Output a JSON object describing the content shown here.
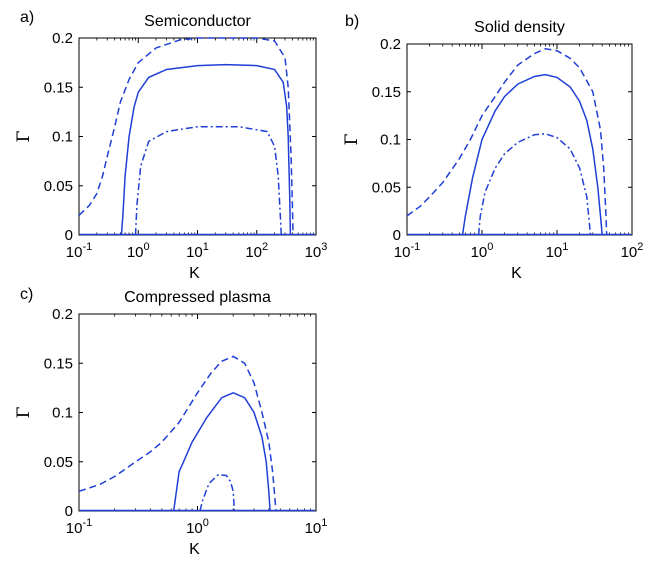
{
  "chart_data": [
    {
      "type": "line",
      "panel_label": "a)",
      "title": "Semiconductor",
      "xlabel": "K",
      "ylabel": "Γ",
      "xscale": "log",
      "xlim": [
        0.1,
        1000
      ],
      "ylim": [
        0,
        0.2
      ],
      "grid": false,
      "x_ticks": [
        0.1,
        1,
        10,
        100,
        1000
      ],
      "x_tick_labels": [
        {
          "base": "10",
          "exp": "-1"
        },
        {
          "base": "10",
          "exp": "0"
        },
        {
          "base": "10",
          "exp": "1"
        },
        {
          "base": "10",
          "exp": "2"
        },
        {
          "base": "10",
          "exp": "3"
        }
      ],
      "y_ticks": [
        0,
        0.05,
        0.1,
        0.15,
        0.2
      ],
      "y_tick_labels": [
        "0",
        "0.05",
        "0.1",
        "0.15",
        "0.2"
      ],
      "series": [
        {
          "style": "dashed",
          "color": "#1f3fd6",
          "points": [
            [
              0.1,
              0.02
            ],
            [
              0.15,
              0.03
            ],
            [
              0.2,
              0.042
            ],
            [
              0.25,
              0.06
            ],
            [
              0.3,
              0.08
            ],
            [
              0.4,
              0.11
            ],
            [
              0.5,
              0.135
            ],
            [
              0.7,
              0.158
            ],
            [
              1,
              0.175
            ],
            [
              2,
              0.19
            ],
            [
              5,
              0.198
            ],
            [
              10,
              0.2
            ],
            [
              30,
              0.2
            ],
            [
              100,
              0.2
            ],
            [
              200,
              0.197
            ],
            [
              300,
              0.18
            ],
            [
              340,
              0.15
            ],
            [
              380,
              0.08
            ],
            [
              400,
              0.03
            ],
            [
              410,
              0.0
            ]
          ]
        },
        {
          "style": "solid",
          "color": "#1f3fd6",
          "points": [
            [
              0.52,
              0.0
            ],
            [
              0.55,
              0.02
            ],
            [
              0.6,
              0.06
            ],
            [
              0.7,
              0.1
            ],
            [
              0.85,
              0.13
            ],
            [
              1,
              0.145
            ],
            [
              1.5,
              0.16
            ],
            [
              3,
              0.168
            ],
            [
              10,
              0.172
            ],
            [
              30,
              0.173
            ],
            [
              100,
              0.172
            ],
            [
              200,
              0.168
            ],
            [
              280,
              0.155
            ],
            [
              320,
              0.13
            ],
            [
              340,
              0.1
            ],
            [
              360,
              0.04
            ],
            [
              370,
              0.0
            ]
          ]
        },
        {
          "style": "dashdot",
          "color": "#1f3fd6",
          "points": [
            [
              0.9,
              0.0
            ],
            [
              0.95,
              0.03
            ],
            [
              1.1,
              0.07
            ],
            [
              1.5,
              0.095
            ],
            [
              3,
              0.105
            ],
            [
              10,
              0.11
            ],
            [
              50,
              0.11
            ],
            [
              150,
              0.105
            ],
            [
              200,
              0.09
            ],
            [
              230,
              0.06
            ],
            [
              250,
              0.02
            ],
            [
              260,
              0.0
            ]
          ]
        }
      ]
    },
    {
      "type": "line",
      "panel_label": "b)",
      "title": "Solid density",
      "xlabel": "K",
      "ylabel": "Γ",
      "xscale": "log",
      "xlim": [
        0.1,
        100
      ],
      "ylim": [
        0,
        0.2
      ],
      "grid": false,
      "x_ticks": [
        0.1,
        1,
        10,
        100
      ],
      "x_tick_labels": [
        {
          "base": "10",
          "exp": "-1"
        },
        {
          "base": "10",
          "exp": "0"
        },
        {
          "base": "10",
          "exp": "1"
        },
        {
          "base": "10",
          "exp": "2"
        }
      ],
      "y_ticks": [
        0,
        0.05,
        0.1,
        0.15,
        0.2
      ],
      "y_tick_labels": [
        "0",
        "0.05",
        "0.1",
        "0.15",
        "0.2"
      ],
      "series": [
        {
          "style": "dashed",
          "color": "#1f3fd6",
          "points": [
            [
              0.1,
              0.02
            ],
            [
              0.15,
              0.03
            ],
            [
              0.2,
              0.04
            ],
            [
              0.3,
              0.055
            ],
            [
              0.5,
              0.08
            ],
            [
              0.7,
              0.1
            ],
            [
              1,
              0.125
            ],
            [
              1.5,
              0.145
            ],
            [
              2,
              0.16
            ],
            [
              3,
              0.178
            ],
            [
              5,
              0.19
            ],
            [
              7,
              0.195
            ],
            [
              10,
              0.193
            ],
            [
              15,
              0.185
            ],
            [
              20,
              0.175
            ],
            [
              30,
              0.15
            ],
            [
              38,
              0.11
            ],
            [
              42,
              0.07
            ],
            [
              45,
              0.02
            ],
            [
              46,
              0.0
            ]
          ]
        },
        {
          "style": "solid",
          "color": "#1f3fd6",
          "points": [
            [
              0.55,
              0.0
            ],
            [
              0.6,
              0.02
            ],
            [
              0.75,
              0.06
            ],
            [
              1,
              0.1
            ],
            [
              1.5,
              0.13
            ],
            [
              2,
              0.145
            ],
            [
              3,
              0.158
            ],
            [
              5,
              0.166
            ],
            [
              7,
              0.168
            ],
            [
              10,
              0.165
            ],
            [
              15,
              0.155
            ],
            [
              20,
              0.14
            ],
            [
              25,
              0.12
            ],
            [
              30,
              0.09
            ],
            [
              35,
              0.05
            ],
            [
              38,
              0.02
            ],
            [
              40,
              0.0
            ]
          ]
        },
        {
          "style": "dashdot",
          "color": "#1f3fd6",
          "points": [
            [
              0.9,
              0.0
            ],
            [
              0.95,
              0.02
            ],
            [
              1.1,
              0.045
            ],
            [
              1.5,
              0.07
            ],
            [
              2,
              0.085
            ],
            [
              3,
              0.097
            ],
            [
              5,
              0.105
            ],
            [
              7,
              0.106
            ],
            [
              10,
              0.102
            ],
            [
              15,
              0.09
            ],
            [
              20,
              0.07
            ],
            [
              25,
              0.04
            ],
            [
              28,
              0.0
            ]
          ]
        }
      ]
    },
    {
      "type": "line",
      "panel_label": "c)",
      "title": "Compressed plasma",
      "xlabel": "K",
      "ylabel": "Γ",
      "xscale": "log",
      "xlim": [
        0.1,
        10
      ],
      "ylim": [
        0,
        0.2
      ],
      "grid": false,
      "x_ticks": [
        0.1,
        1,
        10
      ],
      "x_tick_labels": [
        {
          "base": "10",
          "exp": "-1"
        },
        {
          "base": "10",
          "exp": "0"
        },
        {
          "base": "10",
          "exp": "1"
        }
      ],
      "y_ticks": [
        0,
        0.05,
        0.1,
        0.15,
        0.2
      ],
      "y_tick_labels": [
        "0",
        "0.05",
        "0.1",
        "0.15",
        "0.2"
      ],
      "series": [
        {
          "style": "dashed",
          "color": "#1f3fd6",
          "points": [
            [
              0.1,
              0.02
            ],
            [
              0.15,
              0.027
            ],
            [
              0.2,
              0.035
            ],
            [
              0.3,
              0.05
            ],
            [
              0.4,
              0.06
            ],
            [
              0.5,
              0.07
            ],
            [
              0.7,
              0.09
            ],
            [
              1,
              0.12
            ],
            [
              1.3,
              0.14
            ],
            [
              1.6,
              0.152
            ],
            [
              2,
              0.157
            ],
            [
              2.5,
              0.15
            ],
            [
              3,
              0.13
            ],
            [
              3.5,
              0.1
            ],
            [
              4,
              0.07
            ],
            [
              4.3,
              0.04
            ],
            [
              4.6,
              0.0
            ]
          ]
        },
        {
          "style": "solid",
          "color": "#1f3fd6",
          "points": [
            [
              0.63,
              0.0
            ],
            [
              0.7,
              0.04
            ],
            [
              0.75,
              0.048
            ],
            [
              0.9,
              0.07
            ],
            [
              1.2,
              0.095
            ],
            [
              1.6,
              0.115
            ],
            [
              2,
              0.12
            ],
            [
              2.5,
              0.115
            ],
            [
              3,
              0.1
            ],
            [
              3.5,
              0.075
            ],
            [
              3.8,
              0.05
            ],
            [
              4,
              0.02
            ],
            [
              4.1,
              0.0
            ]
          ]
        },
        {
          "style": "dashdot",
          "color": "#1f3fd6",
          "points": [
            [
              1.05,
              0.0
            ],
            [
              1.1,
              0.01
            ],
            [
              1.25,
              0.028
            ],
            [
              1.5,
              0.037
            ],
            [
              1.75,
              0.036
            ],
            [
              1.9,
              0.03
            ],
            [
              2,
              0.02
            ],
            [
              2.05,
              0.0
            ]
          ]
        }
      ]
    }
  ]
}
